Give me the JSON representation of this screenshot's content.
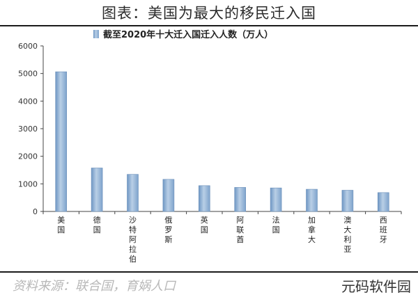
{
  "header": {
    "title": "图表：美国为最大的移民迁入国"
  },
  "source": "资料来源：联合国，育娲人口",
  "watermark": "元码软件园",
  "chart_data": {
    "type": "bar",
    "legend_label": "截至2020年十大迁入国迁入人数（万人）",
    "legend_position": "top",
    "categories": [
      "美国",
      "德国",
      "沙特阿拉伯",
      "俄罗斯",
      "英国",
      "阿联酋",
      "法国",
      "加拿大",
      "澳大利亚",
      "西班牙"
    ],
    "series": [
      {
        "name": "截至2020年十大迁入国迁入人数（万人）",
        "values": [
          5063,
          1576,
          1345,
          1164,
          936,
          872,
          853,
          805,
          769,
          684
        ]
      }
    ],
    "yticks": [
      0,
      1000,
      2000,
      3000,
      4000,
      5000,
      6000
    ],
    "ylim": [
      0,
      6000
    ],
    "grid": false,
    "bar_color": "#8fb0d4"
  }
}
